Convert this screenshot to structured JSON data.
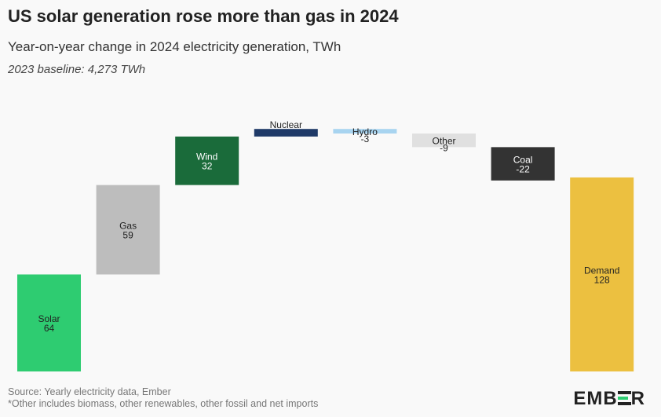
{
  "header": {
    "title": "US solar generation rose more than gas in 2024",
    "subtitle": "Year-on-year change in 2024 electricity generation, TWh",
    "note": "2023 baseline: 4,273 TWh"
  },
  "footer": {
    "source": "Source: Yearly electricity data, Ember",
    "footnote": "*Other includes biomass, other renewables, other fossil and net imports"
  },
  "logo": {
    "text_left": "EMB",
    "text_right": "R"
  },
  "chart_data": {
    "type": "bar",
    "subtype": "waterfall",
    "categories": [
      "Solar",
      "Gas",
      "Wind",
      "Nuclear",
      "Hydro",
      "Other",
      "Coal",
      "Demand"
    ],
    "values": [
      64,
      59,
      32,
      5,
      -3,
      -9,
      -22,
      128
    ],
    "value_labels": [
      "64",
      "59",
      "32",
      "",
      "-3",
      "-9",
      "-22",
      "128"
    ],
    "total_index": 7,
    "colors": [
      "#2ecc71",
      "#bdbdbd",
      "#1a6b3a",
      "#1f3a68",
      "#a8d4f0",
      "#e0e0e0",
      "#333333",
      "#ecc040"
    ],
    "label_colors": [
      "#222222",
      "#222222",
      "#ffffff",
      "#222222",
      "#222222",
      "#222222",
      "#ffffff",
      "#222222"
    ],
    "ylim": [
      0,
      165
    ]
  }
}
